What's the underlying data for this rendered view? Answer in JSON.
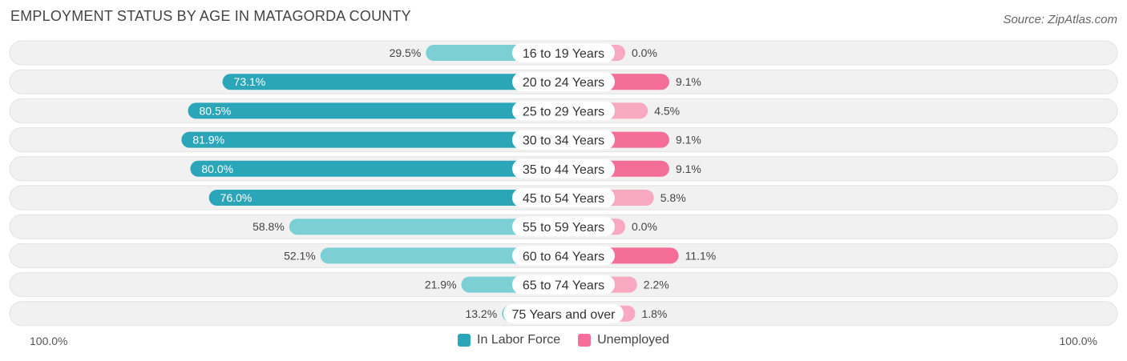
{
  "title": "EMPLOYMENT STATUS BY AGE IN MATAGORDA COUNTY",
  "source": "Source: ZipAtlas.com",
  "colors": {
    "labor_strong": "#2aa6b8",
    "labor_light": "#7bcfd5",
    "unemp_strong": "#f56e9a",
    "unemp_light": "#f9a8c2",
    "row_bg": "#f1f1f1"
  },
  "chart_data": {
    "type": "bar",
    "orientation": "horizontal-diverging",
    "categories": [
      "16 to 19 Years",
      "20 to 24 Years",
      "25 to 29 Years",
      "30 to 34 Years",
      "35 to 44 Years",
      "45 to 54 Years",
      "55 to 59 Years",
      "60 to 64 Years",
      "65 to 74 Years",
      "75 Years and over"
    ],
    "series": [
      {
        "name": "In Labor Force",
        "values": [
          29.5,
          73.1,
          80.5,
          81.9,
          80.0,
          76.0,
          58.8,
          52.1,
          21.9,
          13.2
        ],
        "labels": [
          "29.5%",
          "73.1%",
          "80.5%",
          "81.9%",
          "80.0%",
          "76.0%",
          "58.8%",
          "52.1%",
          "21.9%",
          "13.2%"
        ]
      },
      {
        "name": "Unemployed",
        "values": [
          0.0,
          9.1,
          4.5,
          9.1,
          9.1,
          5.8,
          0.0,
          11.1,
          2.2,
          1.8
        ],
        "labels": [
          "0.0%",
          "9.1%",
          "4.5%",
          "9.1%",
          "9.1%",
          "5.8%",
          "0.0%",
          "11.1%",
          "2.2%",
          "1.8%"
        ]
      }
    ],
    "xlim": [
      -100,
      100
    ],
    "axis_left_label": "100.0%",
    "axis_right_label": "100.0%",
    "legend": [
      "In Labor Force",
      "Unemployed"
    ],
    "legend_position": "bottom-center"
  }
}
